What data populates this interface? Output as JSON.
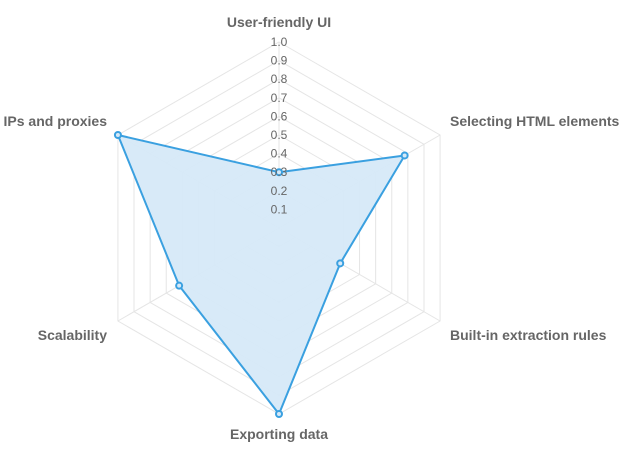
{
  "chart_data": {
    "type": "radar",
    "axes": [
      "User-friendly UI",
      "Selecting HTML elements",
      "Built-in extraction rules",
      "Exporting data",
      "Scalability",
      "IPs and proxies"
    ],
    "ticks": [
      "0.1",
      "0.2",
      "0.3",
      "0.4",
      "0.5",
      "0.6",
      "0.7",
      "0.8",
      "0.9",
      "1.0"
    ],
    "range": [
      0,
      1
    ],
    "grid": true,
    "series": [
      {
        "values": [
          0.3,
          0.78,
          0.38,
          1.0,
          0.62,
          1.0
        ],
        "color": "#3aa0e0",
        "fill": "#d6e9f8"
      }
    ],
    "legend": "none"
  }
}
